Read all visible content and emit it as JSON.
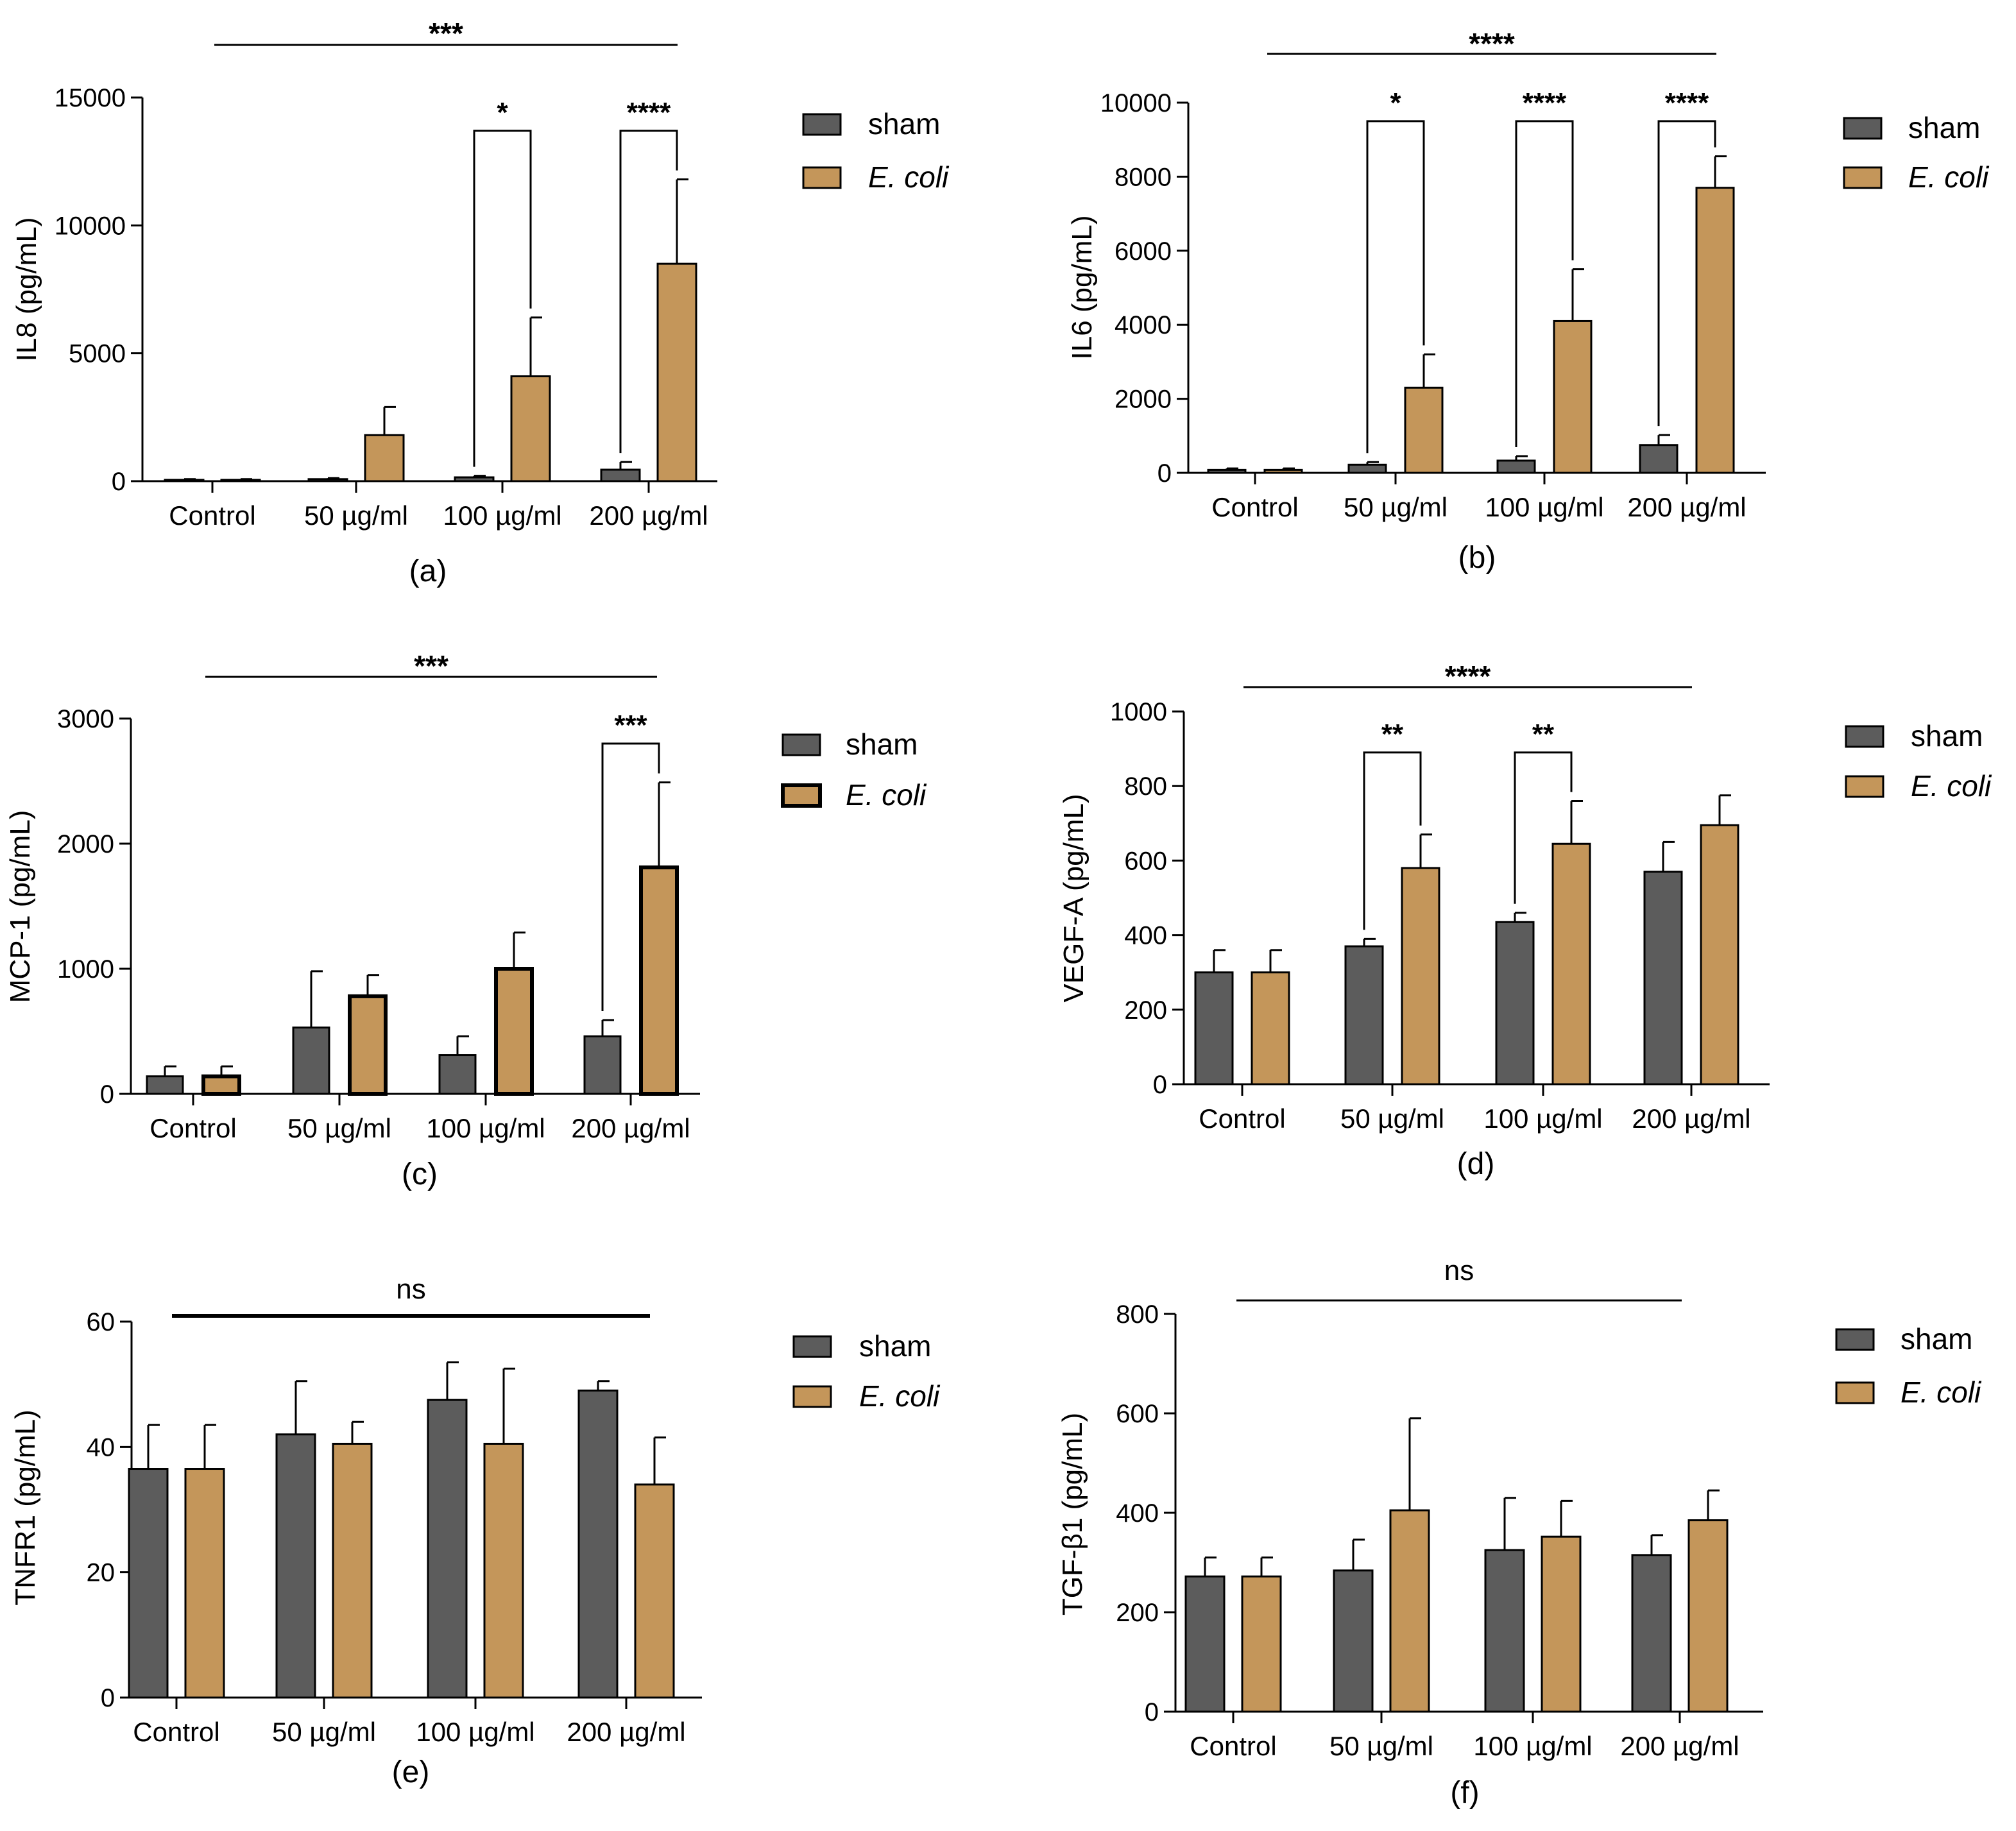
{
  "colors": {
    "sham": "#5c5c5c",
    "ecoli": "#c4965a",
    "axis": "#000000"
  },
  "legend": {
    "sham": "sham",
    "ecoli": "E. coli"
  },
  "chart_data": [
    {
      "panel": "(a)",
      "type": "bar",
      "ylabel": "IL8 (pg/mL)",
      "ylim": [
        0,
        15000
      ],
      "yticks": [
        0,
        5000,
        10000,
        15000
      ],
      "ytick_labels": [
        "0",
        "5000",
        "10000",
        "15000"
      ],
      "categories": [
        "Control",
        "50 µg/ml",
        "100 µg/ml",
        "200 µg/ml"
      ],
      "series": [
        {
          "name": "sham",
          "values": [
            50,
            80,
            150,
            450
          ],
          "errors": [
            30,
            40,
            60,
            300
          ]
        },
        {
          "name": "E. coli",
          "values": [
            50,
            1800,
            4100,
            8500
          ],
          "errors": [
            30,
            1100,
            2300,
            3300
          ]
        }
      ],
      "overall_sig": "***",
      "pair_sig": [
        {
          "category_index": 2,
          "label": "*",
          "bracket_value": 13700
        },
        {
          "category_index": 3,
          "label": "****",
          "bracket_value": 13700
        }
      ]
    },
    {
      "panel": "(b)",
      "type": "bar",
      "ylabel": "IL6 (pg/mL)",
      "ylim": [
        0,
        10000
      ],
      "yticks": [
        0,
        2000,
        4000,
        6000,
        8000,
        10000
      ],
      "ytick_labels": [
        "0",
        "2000",
        "4000",
        "6000",
        "8000",
        "10000"
      ],
      "categories": [
        "Control",
        "50 µg/ml",
        "100 µg/ml",
        "200 µg/ml"
      ],
      "series": [
        {
          "name": "sham",
          "values": [
            80,
            220,
            330,
            750
          ],
          "errors": [
            40,
            70,
            120,
            270
          ]
        },
        {
          "name": "E. coli",
          "values": [
            80,
            2300,
            4100,
            7700
          ],
          "errors": [
            40,
            900,
            1400,
            850
          ]
        }
      ],
      "overall_sig": "****",
      "pair_sig": [
        {
          "category_index": 1,
          "label": "*",
          "bracket_value": 9500
        },
        {
          "category_index": 2,
          "label": "****",
          "bracket_value": 9500
        },
        {
          "category_index": 3,
          "label": "****",
          "bracket_value": 9500
        }
      ]
    },
    {
      "panel": "(c)",
      "type": "bar",
      "ylabel": "MCP-1 (pg/mL)",
      "ylim": [
        0,
        3000
      ],
      "yticks": [
        0,
        1000,
        2000,
        3000
      ],
      "ytick_labels": [
        "0",
        "1000",
        "2000",
        "3000"
      ],
      "categories": [
        "Control",
        "50 µg/ml",
        "100 µg/ml",
        "200 µg/ml"
      ],
      "series": [
        {
          "name": "sham",
          "values": [
            140,
            530,
            310,
            460
          ],
          "errors": [
            80,
            450,
            150,
            130
          ]
        },
        {
          "name": "E. coli",
          "values": [
            140,
            780,
            1000,
            1810
          ],
          "errors": [
            80,
            170,
            290,
            680
          ]
        }
      ],
      "overall_sig": "***",
      "pair_sig": [
        {
          "category_index": 3,
          "label": "***",
          "bracket_value": 2800
        }
      ]
    },
    {
      "panel": "(d)",
      "type": "bar",
      "ylabel": "VEGF-A (pg/mL)",
      "ylim": [
        0,
        1000
      ],
      "yticks": [
        0,
        200,
        400,
        600,
        800,
        1000
      ],
      "ytick_labels": [
        "0",
        "200",
        "400",
        "600",
        "800",
        "1000"
      ],
      "categories": [
        "Control",
        "50 µg/ml",
        "100 µg/ml",
        "200 µg/ml"
      ],
      "series": [
        {
          "name": "sham",
          "values": [
            300,
            370,
            435,
            570
          ],
          "errors": [
            60,
            20,
            25,
            80
          ]
        },
        {
          "name": "E. coli",
          "values": [
            300,
            580,
            645,
            695
          ],
          "errors": [
            60,
            90,
            115,
            80
          ]
        }
      ],
      "overall_sig": "****",
      "pair_sig": [
        {
          "category_index": 1,
          "label": "**",
          "bracket_value": 890
        },
        {
          "category_index": 2,
          "label": "**",
          "bracket_value": 890
        }
      ]
    },
    {
      "panel": "(e)",
      "type": "bar",
      "ylabel": "TNFR1 (pg/mL)",
      "ylim": [
        0,
        60
      ],
      "yticks": [
        0,
        20,
        40,
        60
      ],
      "ytick_labels": [
        "0",
        "20",
        "40",
        "60"
      ],
      "categories": [
        "Control",
        "50 µg/ml",
        "100 µg/ml",
        "200 µg/ml"
      ],
      "series": [
        {
          "name": "sham",
          "values": [
            36.5,
            42,
            47.5,
            49
          ],
          "errors": [
            7,
            8.5,
            6,
            1.5
          ]
        },
        {
          "name": "E. coli",
          "values": [
            36.5,
            40.5,
            40.5,
            34
          ],
          "errors": [
            7,
            3.5,
            12,
            7.5
          ]
        }
      ],
      "overall_sig": "ns",
      "pair_sig": []
    },
    {
      "panel": "(f)",
      "type": "bar",
      "ylabel": "TGF-β1 (pg/mL)",
      "ylim": [
        0,
        800
      ],
      "yticks": [
        0,
        200,
        400,
        600,
        800
      ],
      "ytick_labels": [
        "0",
        "200",
        "400",
        "600",
        "800"
      ],
      "categories": [
        "Control",
        "50 µg/ml",
        "100 µg/ml",
        "200 µg/ml"
      ],
      "series": [
        {
          "name": "sham",
          "values": [
            272,
            284,
            325,
            315
          ],
          "errors": [
            38,
            62,
            105,
            40
          ]
        },
        {
          "name": "E. coli",
          "values": [
            272,
            405,
            352,
            385
          ],
          "errors": [
            38,
            185,
            72,
            60
          ]
        }
      ],
      "overall_sig": "ns",
      "pair_sig": []
    }
  ]
}
